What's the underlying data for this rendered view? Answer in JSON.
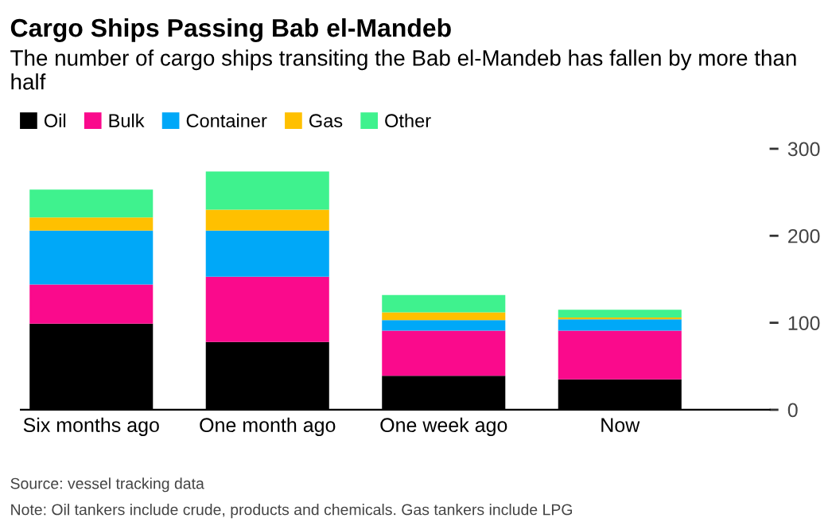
{
  "chart_data": {
    "type": "bar",
    "stacked": true,
    "title": "Cargo Ships Passing Bab el-Mandeb",
    "subtitle": "The number of cargo ships transiting the Bab el-Mandeb has fallen by more than half",
    "categories": [
      "Six months ago",
      "One month ago",
      "One week ago",
      "Now"
    ],
    "series": [
      {
        "name": "Oil",
        "color": "#000000",
        "values": [
          99,
          78,
          39,
          35
        ]
      },
      {
        "name": "Bulk",
        "color": "#fa0a8c",
        "values": [
          45,
          75,
          52,
          56
        ]
      },
      {
        "name": "Container",
        "color": "#00a8f8",
        "values": [
          62,
          53,
          12,
          13
        ]
      },
      {
        "name": "Gas",
        "color": "#ffc000",
        "values": [
          15,
          24,
          9,
          2
        ]
      },
      {
        "name": "Other",
        "color": "#3ff28e",
        "values": [
          32,
          44,
          20,
          9
        ]
      }
    ],
    "ylim": [
      0,
      300
    ],
    "yticks": [
      0,
      100,
      200,
      300
    ],
    "grid": false,
    "legend": "top left",
    "annotations": [
      "Source: vessel tracking data",
      "Note: Oil tankers include crude, products and chemicals. Gas tankers include LPG"
    ]
  }
}
